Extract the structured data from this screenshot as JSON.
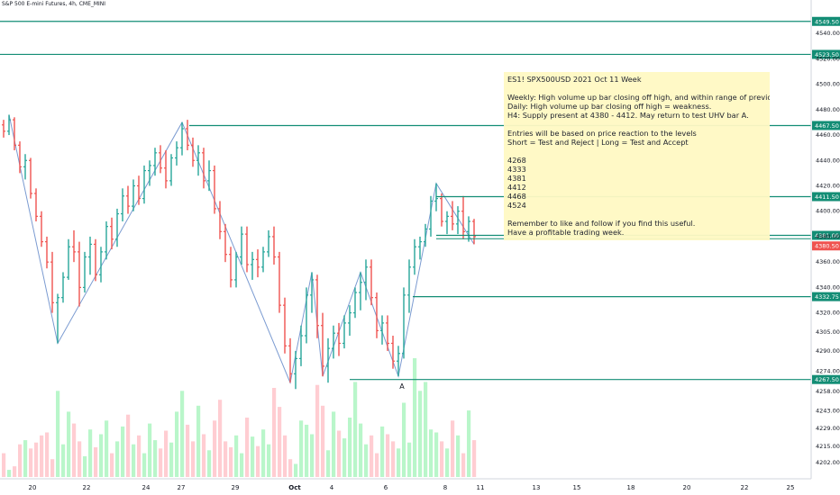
{
  "chart_data": {
    "type": "ohlc",
    "title": "S&P 500 E-mini Futures, 4h, CME_MINI",
    "y_range": [
      4195,
      4555
    ],
    "price_ticks": [
      4540.0,
      4520.0,
      4500.0,
      4480.0,
      4460.0,
      4440.0,
      4420.0,
      4400.0,
      4380.0,
      4360.0,
      4340.0,
      4320.0,
      4305.0,
      4290.0,
      4274.0,
      4258.0,
      4243.0,
      4229.0,
      4215.0,
      4202.0
    ],
    "time_ticks": [
      "20",
      "22",
      "24",
      "27",
      "29",
      "Oct",
      "4",
      "6",
      "8",
      "11",
      "13",
      "15",
      "18",
      "20",
      "22",
      "25"
    ],
    "levels": [
      {
        "label": "4549.50",
        "value": 4549.5,
        "color": "#138d75",
        "from": "left"
      },
      {
        "label": "4523.50",
        "value": 4523.5,
        "color": "#138d75",
        "from": "left"
      },
      {
        "label": "4467.50",
        "value": 4467.5,
        "color": "#138d75",
        "from": "Sep 27"
      },
      {
        "label": "4411.50",
        "value": 4411.5,
        "color": "#138d75",
        "from": "Oct 7"
      },
      {
        "label": "4381.00",
        "value": 4381.0,
        "color": "#138d75",
        "from": "Oct 7"
      },
      {
        "label": "4332.75",
        "value": 4332.75,
        "color": "#138d75",
        "from": "Oct 6"
      },
      {
        "label": "4267.50",
        "value": 4267.5,
        "color": "#138d75",
        "from": "Oct 4"
      }
    ],
    "current_price": {
      "label": "4380.50",
      "value": 4380.5,
      "color": "#ef5350"
    },
    "annotation": "A",
    "bars": [
      {
        "o": 4468,
        "h": 4472,
        "l": 4458,
        "c": 4463
      },
      {
        "o": 4463,
        "h": 4476,
        "l": 4460,
        "c": 4472
      },
      {
        "o": 4472,
        "h": 4474,
        "l": 4448,
        "c": 4452
      },
      {
        "o": 4452,
        "h": 4455,
        "l": 4430,
        "c": 4435
      },
      {
        "o": 4435,
        "h": 4445,
        "l": 4425,
        "c": 4440
      },
      {
        "o": 4440,
        "h": 4442,
        "l": 4410,
        "c": 4414
      },
      {
        "o": 4414,
        "h": 4418,
        "l": 4392,
        "c": 4396
      },
      {
        "o": 4396,
        "h": 4400,
        "l": 4372,
        "c": 4376
      },
      {
        "o": 4376,
        "h": 4380,
        "l": 4355,
        "c": 4360
      },
      {
        "o": 4360,
        "h": 4368,
        "l": 4320,
        "c": 4328
      },
      {
        "o": 4328,
        "h": 4335,
        "l": 4296,
        "c": 4332
      },
      {
        "o": 4332,
        "h": 4352,
        "l": 4328,
        "c": 4348
      },
      {
        "o": 4348,
        "h": 4378,
        "l": 4346,
        "c": 4372
      },
      {
        "o": 4372,
        "h": 4385,
        "l": 4360,
        "c": 4368
      },
      {
        "o": 4368,
        "h": 4376,
        "l": 4325,
        "c": 4340
      },
      {
        "o": 4340,
        "h": 4368,
        "l": 4336,
        "c": 4364
      },
      {
        "o": 4364,
        "h": 4380,
        "l": 4350,
        "c": 4374
      },
      {
        "o": 4374,
        "h": 4378,
        "l": 4345,
        "c": 4350
      },
      {
        "o": 4350,
        "h": 4372,
        "l": 4344,
        "c": 4368
      },
      {
        "o": 4368,
        "h": 4392,
        "l": 4362,
        "c": 4388
      },
      {
        "o": 4388,
        "h": 4395,
        "l": 4370,
        "c": 4378
      },
      {
        "o": 4378,
        "h": 4402,
        "l": 4372,
        "c": 4398
      },
      {
        "o": 4398,
        "h": 4418,
        "l": 4392,
        "c": 4412
      },
      {
        "o": 4412,
        "h": 4420,
        "l": 4398,
        "c": 4404
      },
      {
        "o": 4404,
        "h": 4425,
        "l": 4400,
        "c": 4420
      },
      {
        "o": 4420,
        "h": 4428,
        "l": 4405,
        "c": 4410
      },
      {
        "o": 4410,
        "h": 4436,
        "l": 4406,
        "c": 4432
      },
      {
        "o": 4432,
        "h": 4440,
        "l": 4420,
        "c": 4436
      },
      {
        "o": 4436,
        "h": 4450,
        "l": 4428,
        "c": 4446
      },
      {
        "o": 4446,
        "h": 4452,
        "l": 4430,
        "c": 4434
      },
      {
        "o": 4434,
        "h": 4448,
        "l": 4418,
        "c": 4424
      },
      {
        "o": 4424,
        "h": 4445,
        "l": 4420,
        "c": 4442
      },
      {
        "o": 4442,
        "h": 4455,
        "l": 4436,
        "c": 4450
      },
      {
        "o": 4450,
        "h": 4470,
        "l": 4444,
        "c": 4465
      },
      {
        "o": 4465,
        "h": 4472,
        "l": 4448,
        "c": 4452
      },
      {
        "o": 4452,
        "h": 4458,
        "l": 4435,
        "c": 4440
      },
      {
        "o": 4440,
        "h": 4452,
        "l": 4428,
        "c": 4446
      },
      {
        "o": 4446,
        "h": 4450,
        "l": 4418,
        "c": 4424
      },
      {
        "o": 4424,
        "h": 4440,
        "l": 4416,
        "c": 4432
      },
      {
        "o": 4432,
        "h": 4436,
        "l": 4398,
        "c": 4402
      },
      {
        "o": 4402,
        "h": 4408,
        "l": 4378,
        "c": 4384
      },
      {
        "o": 4384,
        "h": 4390,
        "l": 4360,
        "c": 4366
      },
      {
        "o": 4366,
        "h": 4372,
        "l": 4340,
        "c": 4346
      },
      {
        "o": 4346,
        "h": 4368,
        "l": 4340,
        "c": 4364
      },
      {
        "o": 4364,
        "h": 4388,
        "l": 4358,
        "c": 4382
      },
      {
        "o": 4382,
        "h": 4388,
        "l": 4352,
        "c": 4358
      },
      {
        "o": 4358,
        "h": 4368,
        "l": 4346,
        "c": 4362
      },
      {
        "o": 4362,
        "h": 4370,
        "l": 4348,
        "c": 4356
      },
      {
        "o": 4356,
        "h": 4372,
        "l": 4352,
        "c": 4368
      },
      {
        "o": 4368,
        "h": 4385,
        "l": 4364,
        "c": 4380
      },
      {
        "o": 4380,
        "h": 4388,
        "l": 4358,
        "c": 4364
      },
      {
        "o": 4364,
        "h": 4368,
        "l": 4320,
        "c": 4326
      },
      {
        "o": 4326,
        "h": 4332,
        "l": 4288,
        "c": 4294
      },
      {
        "o": 4294,
        "h": 4300,
        "l": 4265,
        "c": 4272
      },
      {
        "o": 4272,
        "h": 4290,
        "l": 4260,
        "c": 4284
      },
      {
        "o": 4284,
        "h": 4310,
        "l": 4278,
        "c": 4302
      },
      {
        "o": 4302,
        "h": 4340,
        "l": 4296,
        "c": 4334
      },
      {
        "o": 4334,
        "h": 4352,
        "l": 4320,
        "c": 4346
      },
      {
        "o": 4346,
        "h": 4350,
        "l": 4300,
        "c": 4310
      },
      {
        "o": 4310,
        "h": 4320,
        "l": 4270,
        "c": 4278
      },
      {
        "o": 4278,
        "h": 4300,
        "l": 4265,
        "c": 4292
      },
      {
        "o": 4292,
        "h": 4310,
        "l": 4284,
        "c": 4304
      },
      {
        "o": 4304,
        "h": 4312,
        "l": 4286,
        "c": 4296
      },
      {
        "o": 4296,
        "h": 4318,
        "l": 4292,
        "c": 4312
      },
      {
        "o": 4312,
        "h": 4326,
        "l": 4302,
        "c": 4320
      },
      {
        "o": 4320,
        "h": 4340,
        "l": 4316,
        "c": 4336
      },
      {
        "o": 4336,
        "h": 4352,
        "l": 4322,
        "c": 4344
      },
      {
        "o": 4344,
        "h": 4362,
        "l": 4330,
        "c": 4356
      },
      {
        "o": 4356,
        "h": 4362,
        "l": 4326,
        "c": 4332
      },
      {
        "o": 4332,
        "h": 4336,
        "l": 4300,
        "c": 4306
      },
      {
        "o": 4306,
        "h": 4318,
        "l": 4295,
        "c": 4312
      },
      {
        "o": 4312,
        "h": 4318,
        "l": 4290,
        "c": 4296
      },
      {
        "o": 4296,
        "h": 4302,
        "l": 4276,
        "c": 4282
      },
      {
        "o": 4282,
        "h": 4294,
        "l": 4270,
        "c": 4288
      },
      {
        "o": 4288,
        "h": 4340,
        "l": 4284,
        "c": 4334
      },
      {
        "o": 4334,
        "h": 4362,
        "l": 4320,
        "c": 4356
      },
      {
        "o": 4356,
        "h": 4378,
        "l": 4350,
        "c": 4372
      },
      {
        "o": 4372,
        "h": 4380,
        "l": 4362,
        "c": 4376
      },
      {
        "o": 4376,
        "h": 4390,
        "l": 4372,
        "c": 4386
      },
      {
        "o": 4386,
        "h": 4412,
        "l": 4380,
        "c": 4408
      },
      {
        "o": 4408,
        "h": 4422,
        "l": 4400,
        "c": 4410
      },
      {
        "o": 4410,
        "h": 4414,
        "l": 4388,
        "c": 4392
      },
      {
        "o": 4392,
        "h": 4400,
        "l": 4382,
        "c": 4396
      },
      {
        "o": 4396,
        "h": 4408,
        "l": 4385,
        "c": 4390
      },
      {
        "o": 4390,
        "h": 4404,
        "l": 4382,
        "c": 4400
      },
      {
        "o": 4400,
        "h": 4412,
        "l": 4378,
        "c": 4384
      },
      {
        "o": 4384,
        "h": 4396,
        "l": 4376,
        "c": 4392
      },
      {
        "o": 4392,
        "h": 4394,
        "l": 4374,
        "c": 4380
      }
    ],
    "volumes": [
      40,
      12,
      18,
      55,
      62,
      48,
      58,
      70,
      75,
      30,
      145,
      55,
      110,
      90,
      60,
      35,
      80,
      50,
      72,
      95,
      40,
      60,
      85,
      105,
      55,
      70,
      40,
      90,
      62,
      48,
      78,
      58,
      110,
      145,
      88,
      60,
      120,
      72,
      45,
      95,
      130,
      60,
      50,
      70,
      40,
      100,
      68,
      52,
      80,
      55,
      150,
      118,
      70,
      30,
      22,
      95,
      88,
      72,
      155,
      120,
      45,
      110,
      78,
      65,
      100,
      160,
      90,
      55,
      70,
      40,
      85,
      72,
      60,
      48,
      125,
      58,
      200,
      145,
      160,
      80,
      75,
      60,
      48,
      95,
      70,
      40,
      112,
      62
    ]
  },
  "note": {
    "title": "ES1! SPX500USD 2021 Oct 11 Week",
    "lines": [
      "Weekly: High volume up bar closing off high, and within range of previous week's bar.",
      "Daily: High volume up bar closing off high = weakness.",
      "H4: Supply present at 4380 - 4412. May return to test UHV bar A."
    ],
    "entries": [
      "Entries will be based on price reaction to the levels",
      "Short = Test and Reject   |   Long = Test and Accept"
    ],
    "levels": [
      "4268",
      "4333",
      "4381",
      "4412",
      "4468",
      "4524"
    ],
    "closing": [
      "Remember to like and follow if you find this useful.",
      "Have a profitable trading week."
    ]
  },
  "colors": {
    "up": "#26a69a",
    "down": "#ef5350",
    "vol_up": "#b9f6ca",
    "vol_down": "#ffcdd2",
    "level_line": "#138d75",
    "zigzag": "#7b9bd1",
    "note_bg": "#fff9c4"
  }
}
